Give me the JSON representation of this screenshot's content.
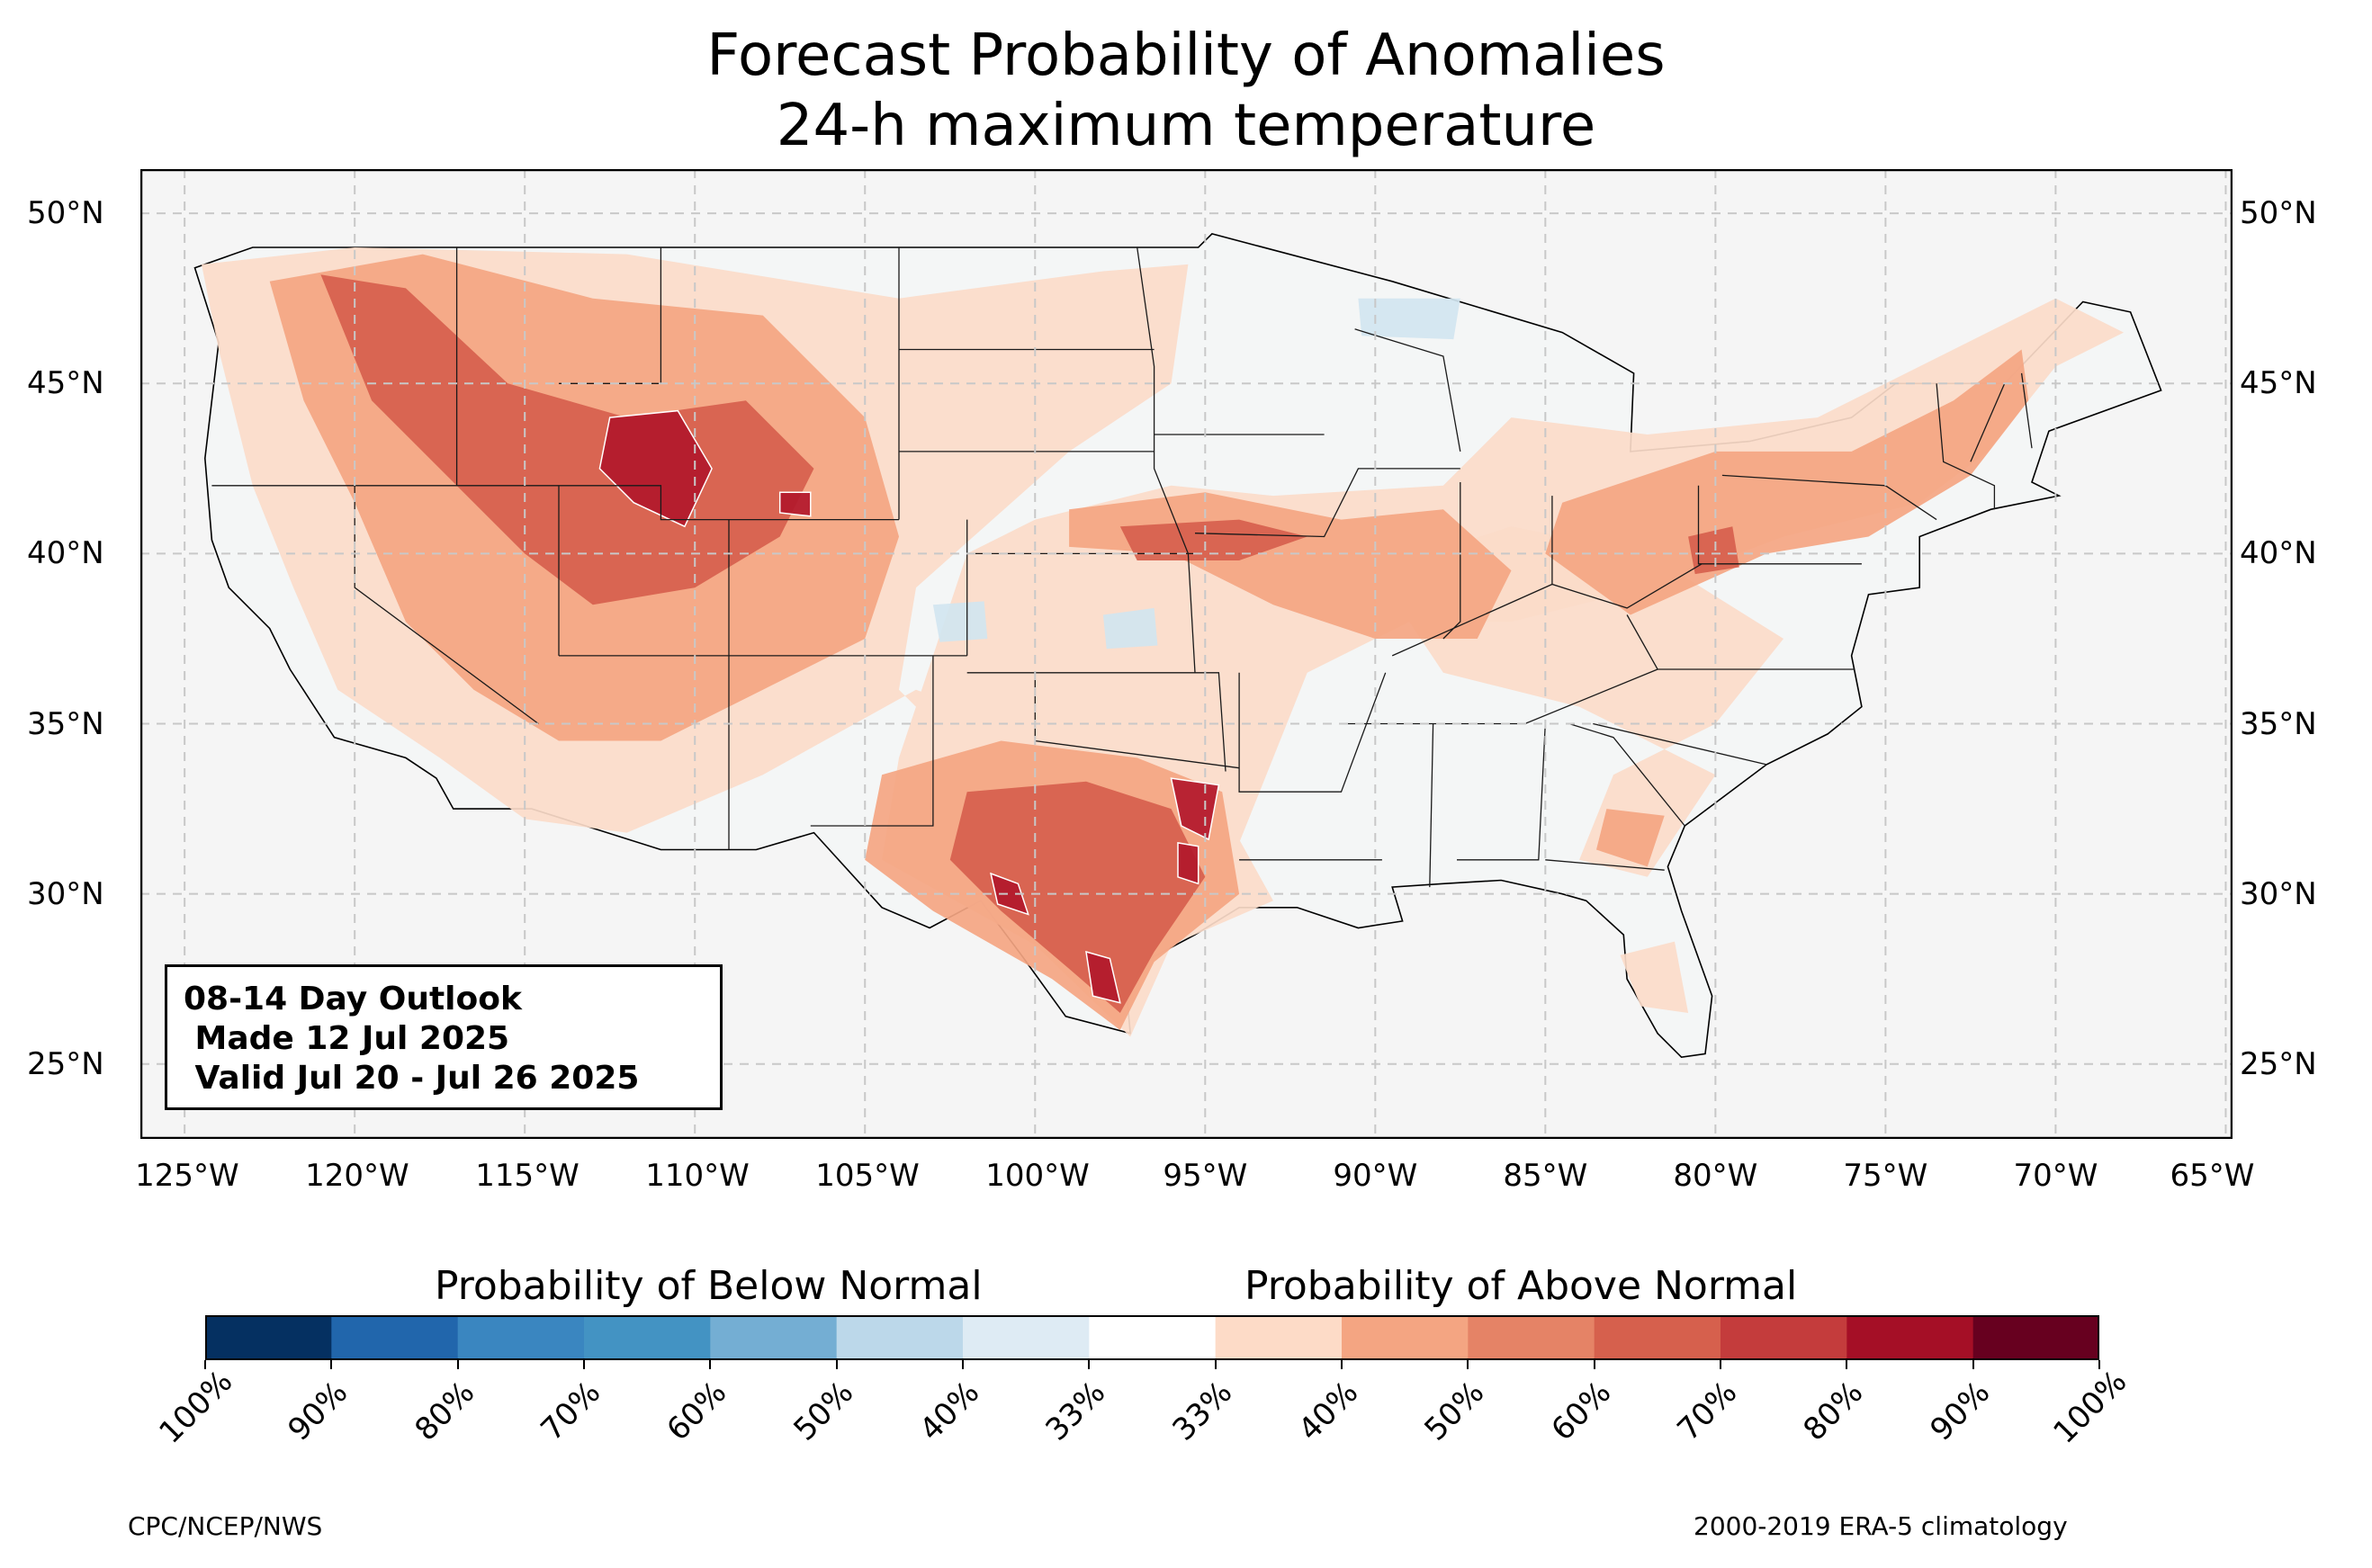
{
  "title": {
    "line1": "Forecast Probability of Anomalies",
    "line2": "24-h maximum temperature"
  },
  "map": {
    "projection": "PlateCarree",
    "extent_lon": [
      -126.3,
      -64.8
    ],
    "extent_lat": [
      22.8,
      51.3
    ],
    "gridlines": "dashed",
    "lat_ticks": [
      {
        "value": 50,
        "label": "50°N"
      },
      {
        "value": 45,
        "label": "45°N"
      },
      {
        "value": 40,
        "label": "40°N"
      },
      {
        "value": 35,
        "label": "35°N"
      },
      {
        "value": 30,
        "label": "30°N"
      },
      {
        "value": 25,
        "label": "25°N"
      }
    ],
    "lon_ticks": [
      {
        "value": -125,
        "label": "125°W"
      },
      {
        "value": -120,
        "label": "120°W"
      },
      {
        "value": -115,
        "label": "115°W"
      },
      {
        "value": -110,
        "label": "110°W"
      },
      {
        "value": -105,
        "label": "105°W"
      },
      {
        "value": -100,
        "label": "100°W"
      },
      {
        "value": -95,
        "label": "95°W"
      },
      {
        "value": -90,
        "label": "90°W"
      },
      {
        "value": -85,
        "label": "85°W"
      },
      {
        "value": -80,
        "label": "80°W"
      },
      {
        "value": -75,
        "label": "75°W"
      },
      {
        "value": -70,
        "label": "70°W"
      },
      {
        "value": -65,
        "label": "65°W"
      }
    ],
    "colors": {
      "land": "#f4f6f6",
      "outside": "#f5f5f5",
      "border": "#000000",
      "county": "#999999",
      "gridline": "#c8c8c8"
    },
    "anomaly_regions": [
      {
        "category": "above",
        "level": "40%",
        "color": "#fbdbc9",
        "lonlat": [
          [
            -124.5,
            48.5
          ],
          [
            -120,
            49
          ],
          [
            -112,
            48.8
          ],
          [
            -104,
            47.5
          ],
          [
            -98,
            48.3
          ],
          [
            -95.5,
            48.5
          ],
          [
            -96,
            45
          ],
          [
            -99,
            43
          ],
          [
            -103.5,
            39
          ],
          [
            -104,
            36
          ],
          [
            -102,
            34
          ],
          [
            -100,
            33.5
          ],
          [
            -98,
            31.5
          ],
          [
            -94,
            31.5
          ],
          [
            -92,
            36.5
          ],
          [
            -89,
            38
          ],
          [
            -86,
            38
          ],
          [
            -82,
            39
          ],
          [
            -78,
            40.5
          ],
          [
            -74,
            41.5
          ],
          [
            -72,
            43
          ],
          [
            -70,
            45.5
          ],
          [
            -68,
            46.5
          ],
          [
            -70,
            47.5
          ],
          [
            -74,
            45.5
          ],
          [
            -77,
            44
          ],
          [
            -82,
            43.5
          ],
          [
            -86,
            44
          ],
          [
            -88,
            42
          ],
          [
            -93,
            41.7
          ],
          [
            -96,
            42
          ],
          [
            -100,
            41
          ],
          [
            -102,
            40
          ],
          [
            -103,
            37
          ],
          [
            -104,
            34
          ],
          [
            -104.5,
            31
          ],
          [
            -100,
            28.5
          ],
          [
            -97.2,
            25.8
          ],
          [
            -96,
            28.5
          ],
          [
            -93,
            29.8
          ],
          [
            -94.5,
            32.5
          ],
          [
            -98,
            34
          ],
          [
            -103.5,
            36
          ],
          [
            -108,
            33.5
          ],
          [
            -112,
            31.8
          ],
          [
            -115,
            32.2
          ],
          [
            -117.5,
            34
          ],
          [
            -120.5,
            36
          ],
          [
            -121.8,
            39
          ],
          [
            -123,
            42
          ],
          [
            -124,
            46
          ]
        ]
      },
      {
        "category": "above",
        "level": "40%",
        "color": "#fbdbc9",
        "lonlat": [
          [
            -90,
            39.5
          ],
          [
            -86,
            40.8
          ],
          [
            -82,
            40
          ],
          [
            -78,
            37.5
          ],
          [
            -80,
            35
          ],
          [
            -83,
            33.5
          ],
          [
            -84,
            31
          ],
          [
            -82,
            30.5
          ],
          [
            -80,
            33.5
          ],
          [
            -84,
            35.5
          ],
          [
            -88,
            36.5
          ]
        ]
      },
      {
        "category": "above",
        "level": "40%",
        "color": "#fbdbc9",
        "lonlat": [
          [
            -82.8,
            28.2
          ],
          [
            -81.2,
            28.6
          ],
          [
            -80.8,
            26.5
          ],
          [
            -82.2,
            26.7
          ]
        ]
      },
      {
        "category": "above",
        "level": "50%",
        "color": "#f4a582",
        "lonlat": [
          [
            -122.5,
            48
          ],
          [
            -118,
            48.8
          ],
          [
            -113,
            47.5
          ],
          [
            -108,
            47
          ],
          [
            -105,
            44
          ],
          [
            -104,
            40.5
          ],
          [
            -105,
            37.5
          ],
          [
            -108,
            36
          ],
          [
            -111,
            34.5
          ],
          [
            -114,
            34.5
          ],
          [
            -116.5,
            36
          ],
          [
            -118.5,
            38
          ],
          [
            -120,
            41.5
          ],
          [
            -121.5,
            44.5
          ]
        ]
      },
      {
        "category": "above",
        "level": "50%",
        "color": "#f4a582",
        "lonlat": [
          [
            -104.5,
            33.5
          ],
          [
            -101,
            34.5
          ],
          [
            -97,
            34
          ],
          [
            -94.5,
            33
          ],
          [
            -94,
            30
          ],
          [
            -96.5,
            28
          ],
          [
            -97.5,
            26
          ],
          [
            -99.5,
            27.5
          ],
          [
            -103,
            29.5
          ],
          [
            -105,
            31
          ]
        ]
      },
      {
        "category": "above",
        "level": "50%",
        "color": "#f4a582",
        "lonlat": [
          [
            -99,
            41.3
          ],
          [
            -95,
            41.8
          ],
          [
            -91,
            41
          ],
          [
            -88,
            41.3
          ],
          [
            -86,
            39.5
          ],
          [
            -87,
            37.5
          ],
          [
            -90,
            37.5
          ],
          [
            -93,
            38.5
          ],
          [
            -96,
            40
          ],
          [
            -99,
            40.2
          ]
        ]
      },
      {
        "category": "above",
        "level": "50%",
        "color": "#f4a582",
        "lonlat": [
          [
            -84.5,
            41.5
          ],
          [
            -80,
            43
          ],
          [
            -76,
            43
          ],
          [
            -73,
            44.5
          ],
          [
            -71,
            46
          ],
          [
            -70.8,
            44.5
          ],
          [
            -72.5,
            42.3
          ],
          [
            -75.5,
            40.5
          ],
          [
            -78.5,
            40
          ],
          [
            -82.5,
            38.2
          ],
          [
            -85,
            40
          ]
        ]
      },
      {
        "category": "above",
        "level": "50%",
        "color": "#f4a582",
        "lonlat": [
          [
            -83.2,
            32.5
          ],
          [
            -81.5,
            32.3
          ],
          [
            -82,
            30.8
          ],
          [
            -83.5,
            31.3
          ]
        ]
      },
      {
        "category": "above",
        "level": "60%",
        "color": "#d6604d",
        "lonlat": [
          [
            -121,
            48.2
          ],
          [
            -118.5,
            47.8
          ],
          [
            -115.5,
            45
          ],
          [
            -112,
            44
          ],
          [
            -108.5,
            44.5
          ],
          [
            -106.5,
            42.5
          ],
          [
            -107.5,
            40.5
          ],
          [
            -110,
            39
          ],
          [
            -113,
            38.5
          ],
          [
            -115,
            40
          ],
          [
            -117,
            42
          ],
          [
            -119.5,
            44.5
          ]
        ]
      },
      {
        "category": "above",
        "level": "60%",
        "color": "#d6604d",
        "lonlat": [
          [
            -102,
            33
          ],
          [
            -98.5,
            33.3
          ],
          [
            -96,
            32.5
          ],
          [
            -95,
            30.5
          ],
          [
            -96.5,
            28.3
          ],
          [
            -97.5,
            26.5
          ],
          [
            -99,
            27.8
          ],
          [
            -101,
            29.5
          ],
          [
            -102.5,
            31
          ]
        ]
      },
      {
        "category": "above",
        "level": "60%",
        "color": "#d6604d",
        "lonlat": [
          [
            -97.5,
            40.8
          ],
          [
            -94,
            41
          ],
          [
            -92,
            40.5
          ],
          [
            -94,
            39.8
          ],
          [
            -97,
            39.8
          ]
        ]
      },
      {
        "category": "above",
        "level": "60%",
        "color": "#d6604d",
        "lonlat": [
          [
            -80.8,
            40.5
          ],
          [
            -79.5,
            40.8
          ],
          [
            -79.3,
            39.6
          ],
          [
            -80.6,
            39.4
          ]
        ]
      },
      {
        "category": "above",
        "level": "70%",
        "color": "#b2182b",
        "lonlat": [
          [
            -112.5,
            44
          ],
          [
            -110.5,
            44.2
          ],
          [
            -109.5,
            42.5
          ],
          [
            -110.3,
            40.8
          ],
          [
            -111.8,
            41.5
          ],
          [
            -112.8,
            42.5
          ]
        ]
      },
      {
        "category": "above",
        "level": "70%",
        "color": "#b2182b",
        "lonlat": [
          [
            -96,
            33.4
          ],
          [
            -94.6,
            33.2
          ],
          [
            -94.9,
            31.6
          ],
          [
            -95.7,
            32
          ]
        ]
      },
      {
        "category": "above",
        "level": "70%",
        "color": "#b2182b",
        "lonlat": [
          [
            -101.3,
            30.6
          ],
          [
            -100.5,
            30.3
          ],
          [
            -100.2,
            29.4
          ],
          [
            -101.1,
            29.7
          ]
        ]
      },
      {
        "category": "above",
        "level": "70%",
        "color": "#b2182b",
        "lonlat": [
          [
            -98.5,
            28.3
          ],
          [
            -97.8,
            28.1
          ],
          [
            -97.5,
            26.8
          ],
          [
            -98.3,
            27
          ]
        ]
      },
      {
        "category": "above",
        "level": "70%",
        "color": "#b2182b",
        "lonlat": [
          [
            -95.8,
            31.5
          ],
          [
            -95.2,
            31.4
          ],
          [
            -95.2,
            30.3
          ],
          [
            -95.8,
            30.5
          ]
        ]
      },
      {
        "category": "above",
        "level": "70%",
        "color": "#b2182b",
        "lonlat": [
          [
            -107.5,
            41.8
          ],
          [
            -106.6,
            41.8
          ],
          [
            -106.6,
            41.1
          ],
          [
            -107.5,
            41.2
          ]
        ]
      },
      {
        "category": "below",
        "level": "40%",
        "color": "#d1e5f0",
        "lonlat": [
          [
            -103,
            38.5
          ],
          [
            -101.5,
            38.6
          ],
          [
            -101.4,
            37.5
          ],
          [
            -102.8,
            37.4
          ]
        ]
      },
      {
        "category": "below",
        "level": "40%",
        "color": "#d1e5f0",
        "lonlat": [
          [
            -98,
            38.2
          ],
          [
            -96.5,
            38.4
          ],
          [
            -96.4,
            37.3
          ],
          [
            -97.9,
            37.2
          ]
        ]
      },
      {
        "category": "below",
        "level": "40%",
        "color": "#d1e5f0",
        "lonlat": [
          [
            -90.5,
            47.5
          ],
          [
            -87.5,
            47.5
          ],
          [
            -87.7,
            46.3
          ],
          [
            -90.4,
            46.4
          ]
        ]
      }
    ]
  },
  "outlook_box": {
    "line1": "08-14 Day Outlook",
    "line2": " Made 12 Jul 2025",
    "line3": " Valid Jul 20 - Jul 26 2025"
  },
  "colorbar": {
    "below_title": "Probability of Below Normal",
    "above_title": "Probability of Above Normal",
    "colors": [
      "#053061",
      "#2166ac",
      "#3a86c0",
      "#4393c3",
      "#74aed3",
      "#bcd8ea",
      "#deebf4",
      "#ffffff",
      "#fddbc7",
      "#f4a582",
      "#e58366",
      "#d6604d",
      "#c43c3c",
      "#a50f26",
      "#67001f"
    ],
    "tick_labels": [
      "100%",
      "90%",
      "80%",
      "70%",
      "60%",
      "50%",
      "40%",
      "33%",
      "33%",
      "40%",
      "50%",
      "60%",
      "70%",
      "80%",
      "90%",
      "100%"
    ]
  },
  "credits": {
    "left": "CPC/NCEP/NWS",
    "right": "2000-2019 ERA-5 climatology"
  }
}
